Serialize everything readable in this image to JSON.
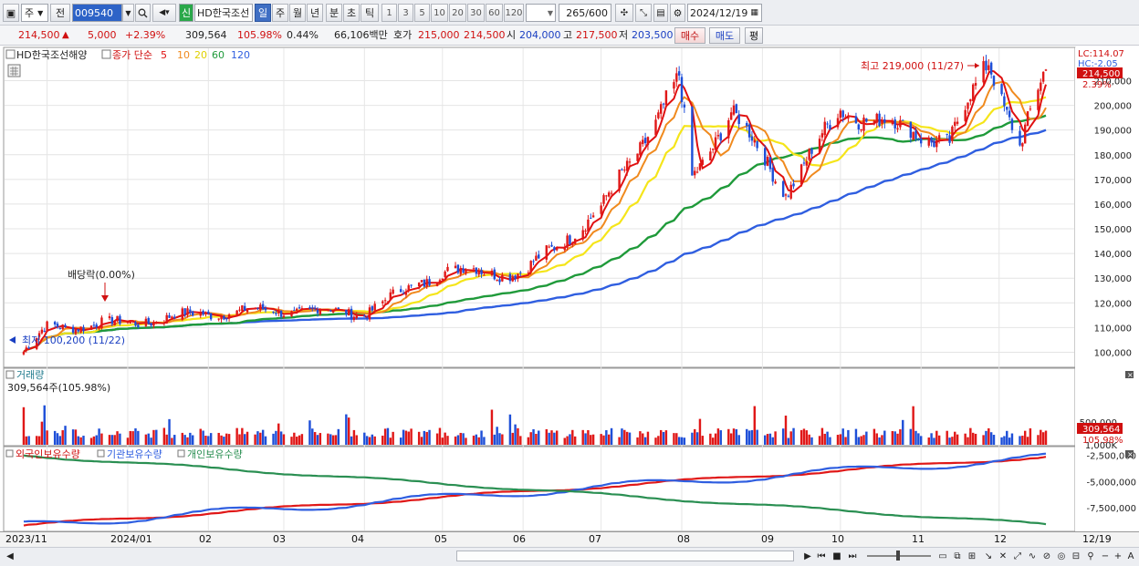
{
  "toolbar": {
    "period_select": "주",
    "jeon": "전",
    "stock_code": "009540",
    "sin_badge": "신",
    "stock_name": "HD한국조선",
    "periods": [
      "일",
      "주",
      "월",
      "년",
      "분",
      "초",
      "틱"
    ],
    "active_period": "일",
    "interval_buttons": [
      "1",
      "3",
      "5",
      "10",
      "20",
      "30",
      "60",
      "120"
    ],
    "count": "265",
    "count_total": "/600",
    "date": "2024/12/19"
  },
  "infobar": {
    "price": "214,500",
    "arrow": "▲",
    "change": "5,000",
    "change_pct": "+2.39%",
    "volume": "309,564",
    "volume_ratio": "105.98%",
    "turnover": "0.44%",
    "amount": "66,106백만",
    "hoga_label": "호가",
    "hoga_ask": "215,000",
    "hoga_bid": "214,500",
    "open_label": "시",
    "open": "204,000",
    "high_label": "고",
    "high": "217,500",
    "low_label": "저",
    "low": "203,500",
    "buy_label": "매수",
    "sell_label": "매도",
    "eval_label": "평"
  },
  "price_panel": {
    "legend_name": "HD한국조선해양",
    "legend_ma_prefix": "종가 단순",
    "ma_periods": [
      "5",
      "10",
      "20",
      "60",
      "120"
    ],
    "lc_label": "LC:114.07",
    "hc_label": "HC:-2.05",
    "current_price_tag": "214,500",
    "current_pct_tag": "2.39%",
    "annotations": {
      "high": "최고 219,000 (11/27)",
      "low": "최저 100,200 (11/22)",
      "dividend": "배당락(0.00%)"
    },
    "y_ticks": [
      "210,000",
      "200,000",
      "190,000",
      "180,000",
      "170,000",
      "160,000",
      "150,000",
      "140,000",
      "130,000",
      "120,000",
      "110,000",
      "100,000"
    ]
  },
  "volume_panel": {
    "title": "거래량",
    "value_text": "309,564주(105.98%)",
    "y_ticks": [
      "1,000K",
      "500,000"
    ],
    "tag_value": "309,564",
    "tag_pct": "105.98%"
  },
  "holding_panel": {
    "legend": [
      "외국인보유수량",
      "기관보유수량",
      "개인보유수량"
    ],
    "y_ticks": [
      "-2,500,000",
      "-5,000,000",
      "-7,500,000"
    ]
  },
  "x_axis": {
    "labels": [
      "2023/11",
      "2024/01",
      "02",
      "03",
      "04",
      "05",
      "06",
      "07",
      "08",
      "09",
      "10",
      "11",
      "12"
    ],
    "right_label": "12/19"
  },
  "colors": {
    "up": "#e01818",
    "down": "#1e4fd8",
    "ma5": "#e01010",
    "ma10": "#f08a1e",
    "ma20": "#f5e51a",
    "ma60": "#1f9a3a",
    "ma120": "#2f5ee0",
    "foreign": "#e01818",
    "institution": "#2f5ee0",
    "individual": "#2a8f52"
  },
  "chart_data": [
    {
      "type": "candlestick",
      "title": "HD한국조선해양",
      "x_range": [
        "2023/11",
        "2024/12/19"
      ],
      "ylim": [
        95000,
        222000
      ],
      "points": [
        {
          "x": "2023/11/22",
          "y": 100200
        },
        {
          "x": "2023/12",
          "y": 110000
        },
        {
          "x": "2024/01",
          "y": 112000
        },
        {
          "x": "2024/02",
          "y": 116000
        },
        {
          "x": "2024/03",
          "y": 117000
        },
        {
          "x": "2024/04",
          "y": 116000
        },
        {
          "x": "2024/05",
          "y": 133000
        },
        {
          "x": "2024/06",
          "y": 132000
        },
        {
          "x": "2024/07",
          "y": 158000
        },
        {
          "x": "2024/07/31",
          "y": 210000
        },
        {
          "x": "2024/08/05",
          "y": 170000
        },
        {
          "x": "2024/08/20",
          "y": 198000
        },
        {
          "x": "2024/09/10",
          "y": 165000
        },
        {
          "x": "2024/10",
          "y": 198000
        },
        {
          "x": "2024/11/12",
          "y": 185000
        },
        {
          "x": "2024/11/27",
          "y": 219000
        },
        {
          "x": "2024/12/09",
          "y": 183000
        },
        {
          "x": "2024/12/19",
          "y": 214500
        }
      ]
    },
    {
      "type": "bar",
      "title": "거래량",
      "latest_value": 309564,
      "ylim": [
        0,
        1400000
      ]
    },
    {
      "type": "line",
      "title": "보유수량",
      "series": [
        {
          "name": "외국인보유수량"
        },
        {
          "name": "기관보유수량"
        },
        {
          "name": "개인보유수량"
        }
      ],
      "ylim": [
        -9500000,
        -2000000
      ]
    }
  ]
}
